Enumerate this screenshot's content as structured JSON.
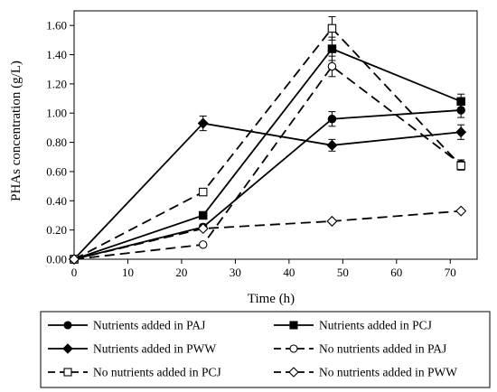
{
  "chart_data": {
    "type": "line",
    "x": [
      0,
      24,
      48,
      72
    ],
    "xlabel": "Time (h)",
    "ylabel": "PHAs concentration (g/L)",
    "xlim": [
      0,
      75
    ],
    "ylim": [
      0,
      1.7
    ],
    "xticks": [
      "0",
      "10",
      "20",
      "30",
      "40",
      "50",
      "60",
      "70"
    ],
    "yticks": [
      "0.00",
      "0.20",
      "0.40",
      "0.60",
      "0.80",
      "1.00",
      "1.20",
      "1.40",
      "1.60"
    ],
    "grid": false,
    "legend_placement": "bottom",
    "series": [
      {
        "name": "Nutrients added in PAJ",
        "values": [
          0,
          0.22,
          0.96,
          1.02
        ],
        "errors": [
          0,
          0.02,
          0.05,
          0.05
        ],
        "marker": "circle",
        "filled": true,
        "dash": "solid"
      },
      {
        "name": "Nutrients added in PCJ",
        "values": [
          0,
          0.3,
          1.44,
          1.08
        ],
        "errors": [
          0,
          0.02,
          0.08,
          0.05
        ],
        "marker": "square",
        "filled": true,
        "dash": "solid"
      },
      {
        "name": "Nutrients added in PWW",
        "values": [
          0,
          0.93,
          0.78,
          0.87
        ],
        "errors": [
          0,
          0.05,
          0.04,
          0.05
        ],
        "marker": "diamond",
        "filled": true,
        "dash": "solid"
      },
      {
        "name": "No nutrients added in PAJ",
        "values": [
          0,
          0.1,
          1.32,
          0.65
        ],
        "errors": [
          0,
          0.01,
          0.07,
          0.03
        ],
        "marker": "circle",
        "filled": false,
        "dash": "dashed"
      },
      {
        "name": "No nutrients added in PCJ",
        "values": [
          0,
          0.46,
          1.58,
          0.64
        ],
        "errors": [
          0,
          0.02,
          0.08,
          0.03
        ],
        "marker": "square",
        "filled": false,
        "dash": "dashed"
      },
      {
        "name": "No nutrients added in PWW",
        "values": [
          0,
          0.21,
          0.26,
          0.33
        ],
        "errors": [
          0,
          0.01,
          0.01,
          0.01
        ],
        "marker": "diamond",
        "filled": false,
        "dash": "dashed"
      }
    ]
  }
}
